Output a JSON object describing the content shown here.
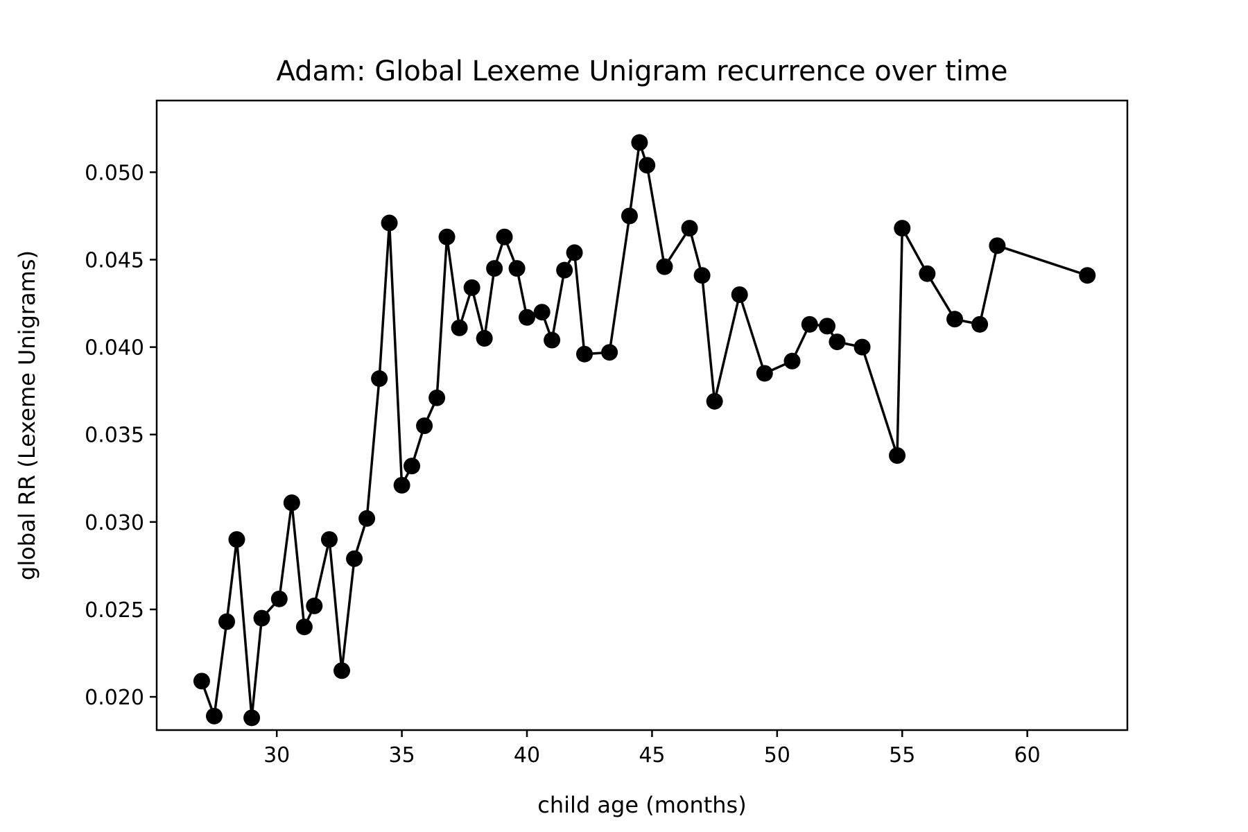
{
  "chart_data": {
    "type": "line",
    "title": "Adam: Global Lexeme Unigram recurrence over time",
    "xlabel": "child age (months)",
    "ylabel": "global RR (Lexeme Unigrams)",
    "xlim": [
      25.2,
      64.0
    ],
    "ylim": [
      0.0181,
      0.0541
    ],
    "xticks": [
      30,
      35,
      40,
      45,
      50,
      55,
      60
    ],
    "xtick_labels": [
      "30",
      "35",
      "40",
      "45",
      "50",
      "55",
      "60"
    ],
    "yticks": [
      0.02,
      0.025,
      0.03,
      0.035,
      0.04,
      0.045,
      0.05
    ],
    "ytick_labels": [
      "0.020",
      "0.025",
      "0.030",
      "0.035",
      "0.040",
      "0.045",
      "0.050"
    ],
    "grid": false,
    "series": [
      {
        "color": "#000000",
        "marker": "circle",
        "x": [
          27.0,
          27.5,
          28.0,
          28.4,
          29.0,
          29.4,
          30.1,
          30.6,
          31.1,
          31.5,
          32.1,
          32.6,
          33.1,
          33.6,
          34.1,
          34.5,
          35.0,
          35.4,
          35.9,
          36.4,
          36.8,
          37.3,
          37.8,
          38.3,
          38.7,
          39.1,
          39.6,
          40.0,
          40.6,
          41.0,
          41.5,
          41.9,
          42.3,
          43.3,
          44.1,
          44.5,
          44.8,
          45.5,
          46.5,
          47.0,
          47.5,
          48.5,
          49.5,
          50.6,
          51.3,
          52.0,
          52.4,
          53.4,
          54.8,
          55.0,
          56.0,
          57.1,
          58.1,
          58.8,
          62.4
        ],
        "y": [
          0.0209,
          0.0189,
          0.0243,
          0.029,
          0.0188,
          0.0245,
          0.0256,
          0.0311,
          0.024,
          0.0252,
          0.029,
          0.0215,
          0.0279,
          0.0302,
          0.0382,
          0.0471,
          0.0321,
          0.0332,
          0.0355,
          0.0371,
          0.0463,
          0.0411,
          0.0434,
          0.0405,
          0.0445,
          0.0463,
          0.0445,
          0.0417,
          0.042,
          0.0404,
          0.0444,
          0.0454,
          0.0396,
          0.0397,
          0.0475,
          0.0517,
          0.0504,
          0.0446,
          0.0468,
          0.0441,
          0.0369,
          0.043,
          0.0385,
          0.0392,
          0.0413,
          0.0412,
          0.0403,
          0.04,
          0.0338,
          0.0468,
          0.0442,
          0.0416,
          0.0413,
          0.0458,
          0.0441
        ]
      }
    ]
  }
}
